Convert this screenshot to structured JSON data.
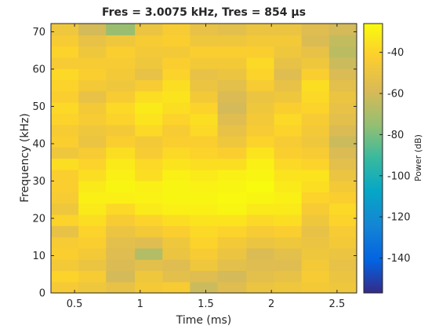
{
  "chart_data": {
    "type": "heatmap",
    "title": "Fres = 3.0075 kHz, Tres = 854 µs",
    "xlabel": "Time (ms)",
    "ylabel": "Frequency (kHz)",
    "colorbar_label": "Power (dB)",
    "colormap": "parula",
    "xlim": [
      0.32,
      2.65
    ],
    "ylim": [
      0,
      72.2
    ],
    "clim": [
      -157,
      -26
    ],
    "x_ticks": [
      0.5,
      1,
      1.5,
      2,
      2.5
    ],
    "x_tick_labels": [
      "0.5",
      "1",
      "1.5",
      "2",
      "2.5"
    ],
    "y_ticks": [
      0,
      10,
      20,
      30,
      40,
      50,
      60,
      70
    ],
    "y_tick_labels": [
      "0",
      "10",
      "20",
      "30",
      "40",
      "50",
      "60",
      "70"
    ],
    "colorbar_ticks": [
      -40,
      -60,
      -80,
      -100,
      -120,
      -140
    ],
    "colorbar_tick_labels": [
      "-40",
      "-60",
      "-80",
      "-100",
      "-120",
      "-140"
    ],
    "time_columns_ms": [
      0.32,
      0.53,
      0.74,
      0.96,
      1.17,
      1.38,
      1.59,
      1.81,
      2.02,
      2.23,
      2.44,
      2.65
    ],
    "frequency_resolution_khz": 3.0075,
    "frequency_rows": 24,
    "power_db": [
      [
        -45,
        -40,
        -46,
        -42,
        -44,
        -52,
        -40,
        -48,
        -44,
        -42,
        -42,
        -36,
        -48,
        -42,
        -44,
        -40,
        -38,
        -42,
        -40,
        -38,
        -44,
        -40,
        -44,
        -48
      ],
      [
        -48,
        -44,
        -50,
        -46,
        -42,
        -40,
        -36,
        -32,
        -30,
        -32,
        -36,
        -40,
        -44,
        -50,
        -48,
        -44,
        -46,
        -52,
        -46,
        -42,
        -44,
        -48,
        -52,
        -60
      ],
      [
        -52,
        -60,
        -58,
        -56,
        -54,
        -50,
        -44,
        -38,
        -30,
        -28,
        -30,
        -32,
        -36,
        -42,
        -46,
        -40,
        -38,
        -44,
        -48,
        -46,
        -44,
        -42,
        -48,
        -74
      ],
      [
        -46,
        -48,
        -54,
        -68,
        -56,
        -46,
        -40,
        -32,
        -29,
        -30,
        -36,
        -38,
        -44,
        -46,
        -38,
        -34,
        -32,
        -36,
        -44,
        -52,
        -48,
        -46,
        -44,
        -50
      ],
      [
        -44,
        -54,
        -56,
        -50,
        -48,
        -42,
        -36,
        -30,
        -28,
        -28,
        -30,
        -34,
        -38,
        -42,
        -44,
        -40,
        -36,
        -34,
        -36,
        -40,
        -42,
        -46,
        -42,
        -44
      ],
      [
        -62,
        -56,
        -48,
        -44,
        -40,
        -38,
        -34,
        -30,
        -28,
        -29,
        -32,
        -36,
        -40,
        -42,
        -38,
        -36,
        -40,
        -46,
        -50,
        -52,
        -46,
        -42,
        -48,
        -52
      ],
      [
        -56,
        -60,
        -54,
        -50,
        -46,
        -40,
        -34,
        -28,
        -27,
        -28,
        -30,
        -36,
        -42,
        -48,
        -52,
        -56,
        -60,
        -58,
        -54,
        -50,
        -46,
        -42,
        -48,
        -54
      ],
      [
        -50,
        -54,
        -56,
        -58,
        -50,
        -44,
        -38,
        -32,
        -28,
        -26,
        -28,
        -30,
        -34,
        -40,
        -44,
        -46,
        -48,
        -50,
        -44,
        -40,
        -38,
        -42,
        -46,
        -50
      ],
      [
        -48,
        -52,
        -56,
        -54,
        -48,
        -42,
        -36,
        -32,
        -30,
        -32,
        -34,
        -38,
        -42,
        -44,
        -40,
        -38,
        -42,
        -48,
        -52,
        -56,
        -52,
        -48,
        -46,
        -50
      ],
      [
        -46,
        -44,
        -46,
        -48,
        -50,
        -52,
        -48,
        -44,
        -40,
        -36,
        -34,
        -40,
        -44,
        -48,
        -46,
        -44,
        -40,
        -38,
        -36,
        -42,
        -48,
        -52,
        -58,
        -56
      ],
      [
        -48,
        -50,
        -52,
        -50,
        -46,
        -44,
        -40,
        -38,
        -42,
        -46,
        -50,
        -54,
        -58,
        -62,
        -58,
        -54,
        -52,
        -50,
        -54,
        -58,
        -62,
        -66,
        -64,
        -60
      ]
    ]
  }
}
